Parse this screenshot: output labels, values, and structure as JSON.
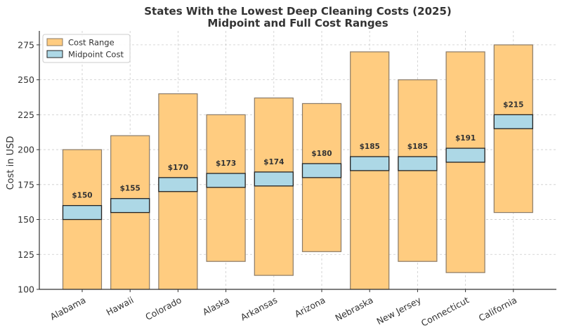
{
  "chart_data": {
    "type": "bar",
    "title": "States With the Lowest Deep Cleaning Costs (2025)",
    "subtitle": "Midpoint and Full Cost Ranges",
    "xlabel": "",
    "ylabel": "Cost in USD",
    "ylim": [
      100,
      285
    ],
    "yticks": [
      100,
      125,
      150,
      175,
      200,
      225,
      250,
      275
    ],
    "grid": true,
    "legend_position": "top-left",
    "categories": [
      "Alabama",
      "Hawaii",
      "Colorado",
      "Alaska",
      "Arkansas",
      "Arizona",
      "Nebraska",
      "New Jersey",
      "Connecticut",
      "California"
    ],
    "series": [
      {
        "name": "Cost Range",
        "color": "#FFCC80",
        "low": [
          100,
          100,
          100,
          120,
          110,
          127,
          100,
          120,
          112,
          155
        ],
        "high": [
          200,
          210,
          240,
          225,
          237,
          233,
          270,
          250,
          270,
          275
        ]
      },
      {
        "name": "Midpoint Cost",
        "color": "#ADD8E6",
        "values": [
          150,
          155,
          170,
          173,
          174,
          180,
          185,
          185,
          191,
          215
        ],
        "band_height": 10
      }
    ],
    "data_labels": [
      "$150",
      "$155",
      "$170",
      "$173",
      "$174",
      "$180",
      "$185",
      "$185",
      "$191",
      "$215"
    ]
  }
}
